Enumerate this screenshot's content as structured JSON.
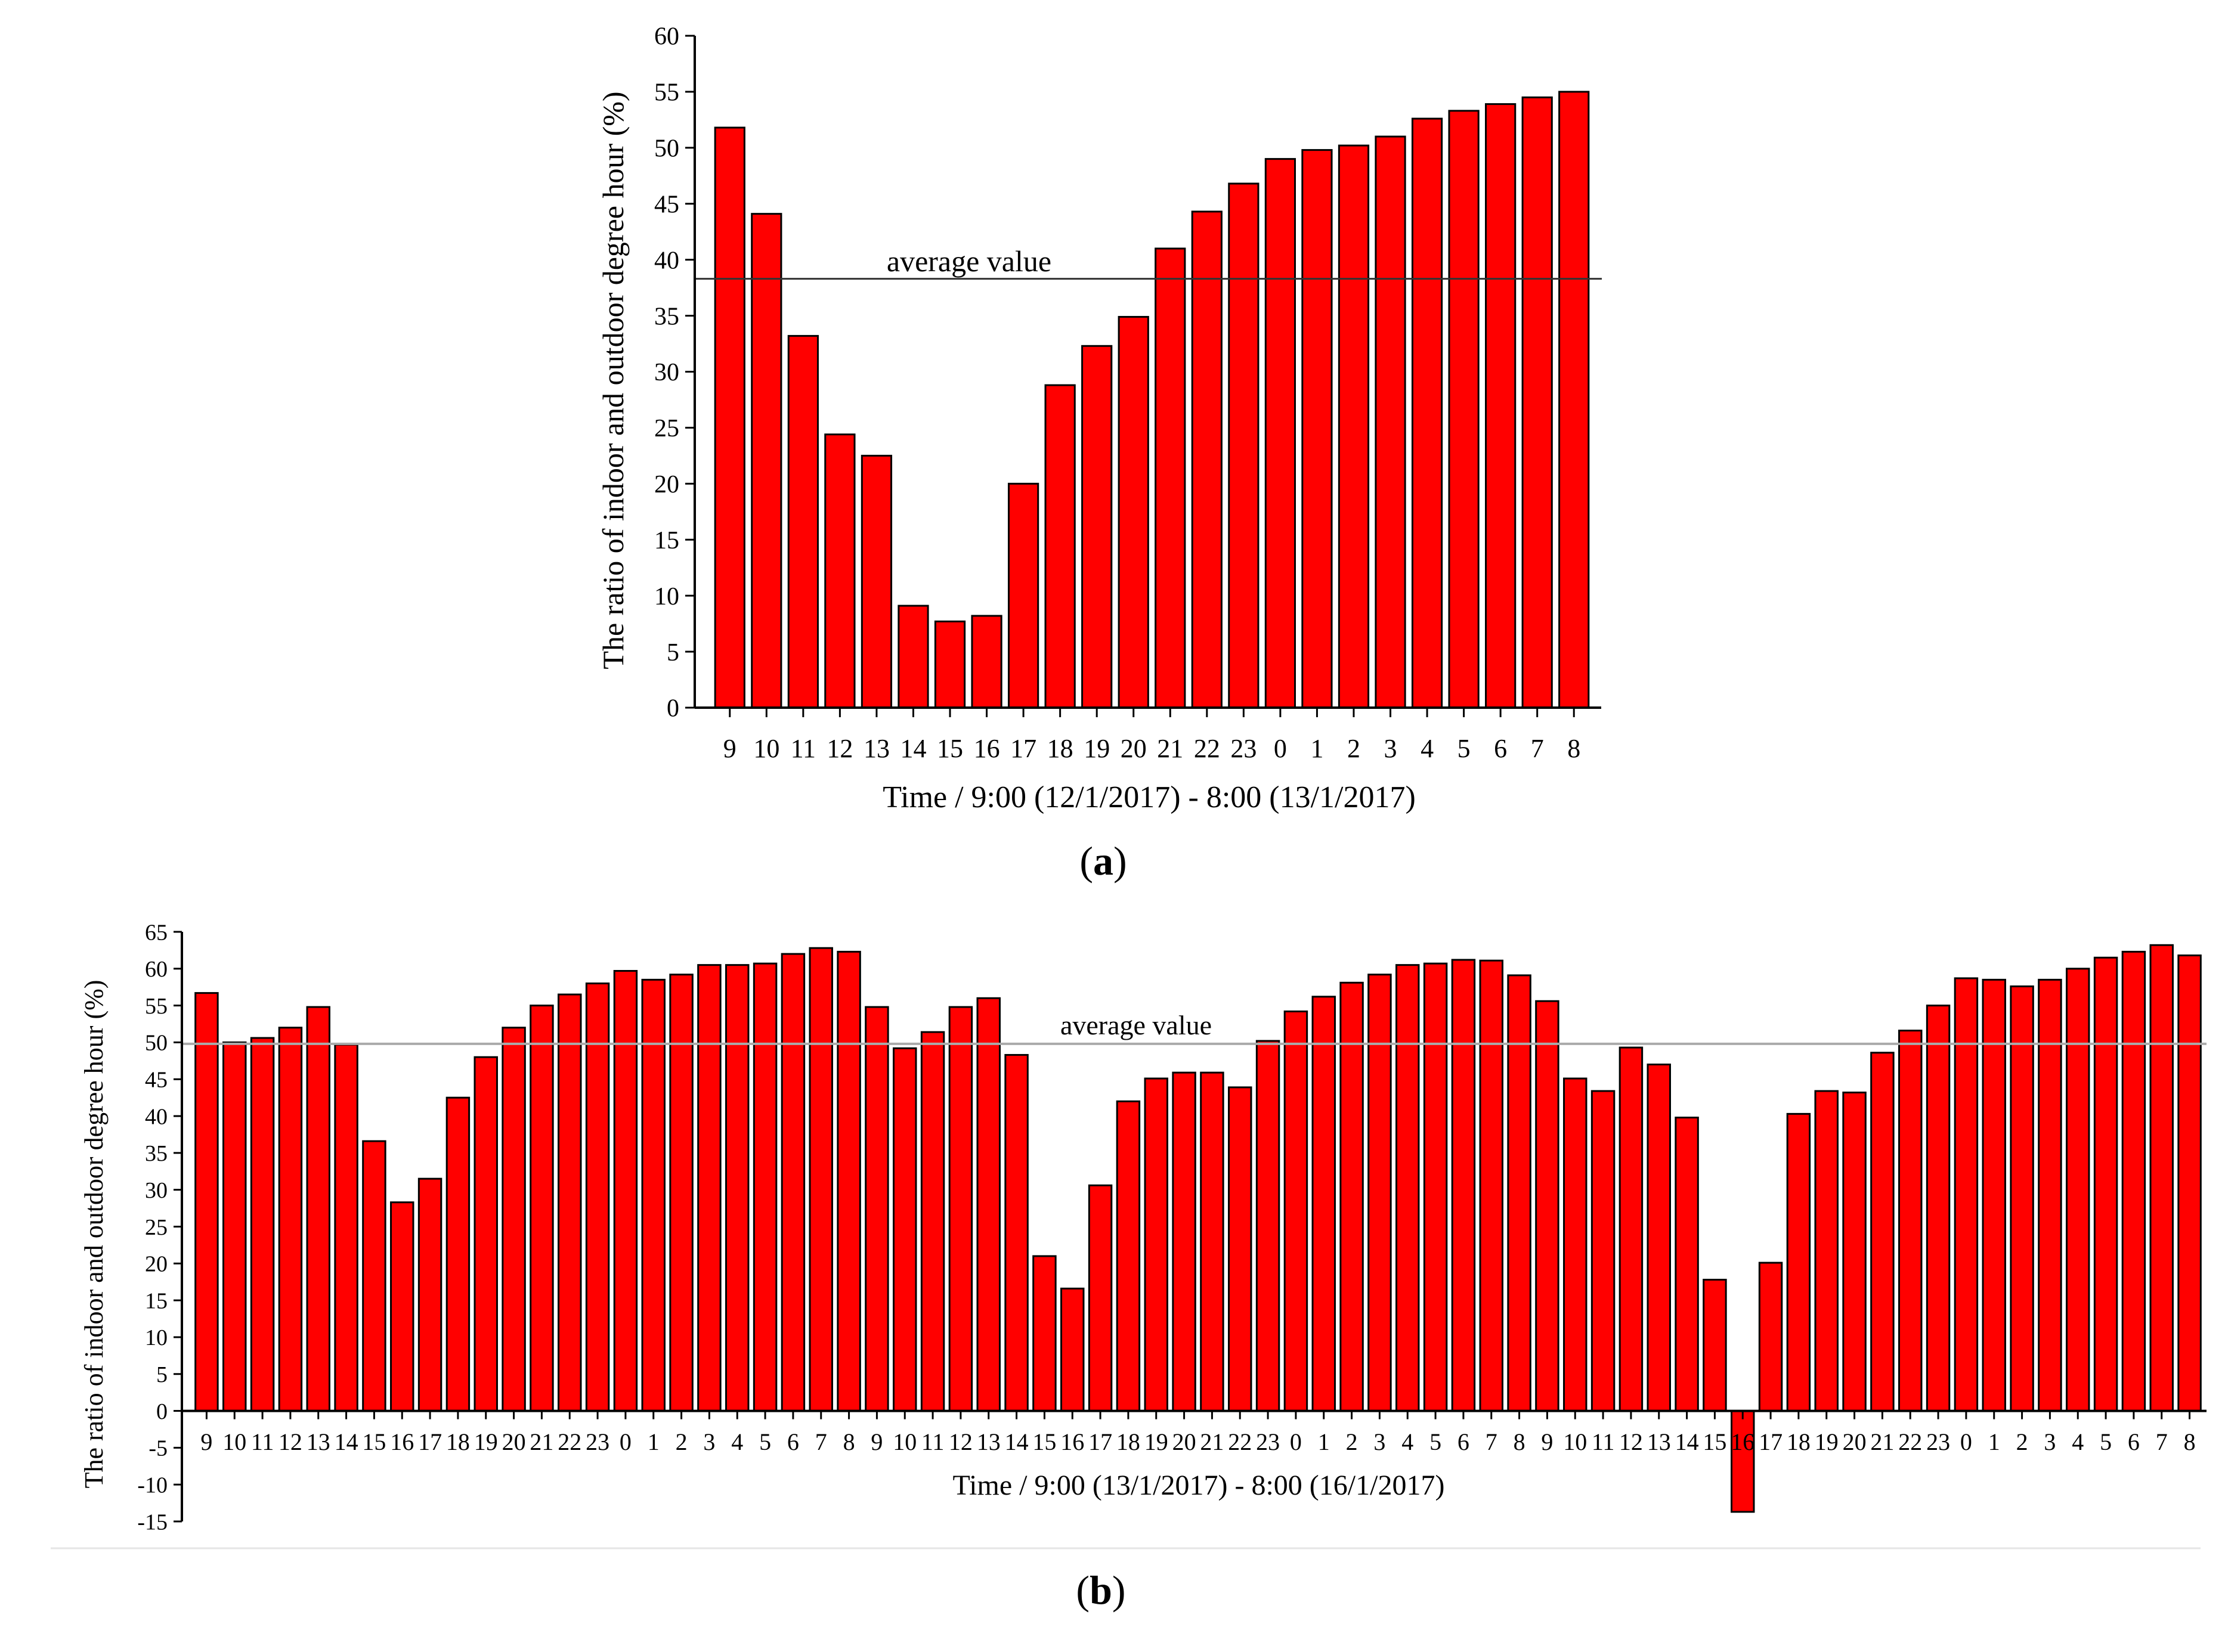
{
  "chart_data": [
    {
      "type": "bar",
      "panel_label": "a",
      "title": "",
      "xlabel": "Time / 9:00 (12/1/2017) - 8:00 (13/1/2017)",
      "ylabel": "The ratio of indoor and outdoor degree hour (%)",
      "ylim": [
        0,
        60
      ],
      "ytick_step": 5,
      "categories": [
        "9",
        "10",
        "11",
        "12",
        "13",
        "14",
        "15",
        "16",
        "17",
        "18",
        "19",
        "20",
        "21",
        "22",
        "23",
        "0",
        "1",
        "2",
        "3",
        "4",
        "5",
        "6",
        "7",
        "8"
      ],
      "values": [
        51.8,
        44.1,
        33.2,
        24.4,
        22.5,
        9.1,
        7.7,
        8.2,
        20.0,
        28.8,
        32.3,
        34.9,
        41.0,
        44.3,
        46.8,
        49.0,
        49.8,
        50.2,
        51.0,
        52.6,
        53.3,
        53.9,
        54.5,
        55.0
      ],
      "reference_line": {
        "label": "average value",
        "value": 38.3
      },
      "bar_color": "#ff0000",
      "grid": false,
      "legend": "none"
    },
    {
      "type": "bar",
      "panel_label": "b",
      "title": "",
      "xlabel": "Time / 9:00 (13/1/2017) - 8:00 (16/1/2017)",
      "ylabel": "The ratio of indoor and outdoor degree hour (%)",
      "ylim": [
        -15,
        65
      ],
      "ytick_step": 5,
      "categories": [
        "9",
        "10",
        "11",
        "12",
        "13",
        "14",
        "15",
        "16",
        "17",
        "18",
        "19",
        "20",
        "21",
        "22",
        "23",
        "0",
        "1",
        "2",
        "3",
        "4",
        "5",
        "6",
        "7",
        "8",
        "9",
        "10",
        "11",
        "12",
        "13",
        "14",
        "15",
        "16",
        "17",
        "18",
        "19",
        "20",
        "21",
        "22",
        "23",
        "0",
        "1",
        "2",
        "3",
        "4",
        "5",
        "6",
        "7",
        "8",
        "9",
        "10",
        "11",
        "12",
        "13",
        "14",
        "15",
        "16",
        "17",
        "18",
        "19",
        "20",
        "21",
        "22",
        "23",
        "0",
        "1",
        "2",
        "3",
        "4",
        "5",
        "6",
        "7",
        "8"
      ],
      "values": [
        56.7,
        50.0,
        50.6,
        52.0,
        54.8,
        49.7,
        36.6,
        28.3,
        31.5,
        42.5,
        48.0,
        52.0,
        55.0,
        56.5,
        58.0,
        59.7,
        58.5,
        59.2,
        60.5,
        60.5,
        60.7,
        62.0,
        62.8,
        62.3,
        54.8,
        49.2,
        51.4,
        54.8,
        56.0,
        48.3,
        21.0,
        16.6,
        30.6,
        42.0,
        45.1,
        45.9,
        45.9,
        43.9,
        50.2,
        54.2,
        56.2,
        58.1,
        59.2,
        60.5,
        60.7,
        61.2,
        61.1,
        59.1,
        55.6,
        45.1,
        43.4,
        49.3,
        47.0,
        39.8,
        17.8,
        -13.7,
        20.1,
        40.3,
        43.4,
        43.2,
        48.6,
        51.6,
        55.0,
        58.7,
        58.5,
        57.6,
        58.5,
        60.0,
        61.5,
        62.3,
        63.2,
        61.8
      ],
      "reference_line": {
        "label": "average value",
        "value": 49.8
      },
      "bar_color": "#ff0000",
      "grid": false,
      "legend": "none"
    }
  ]
}
